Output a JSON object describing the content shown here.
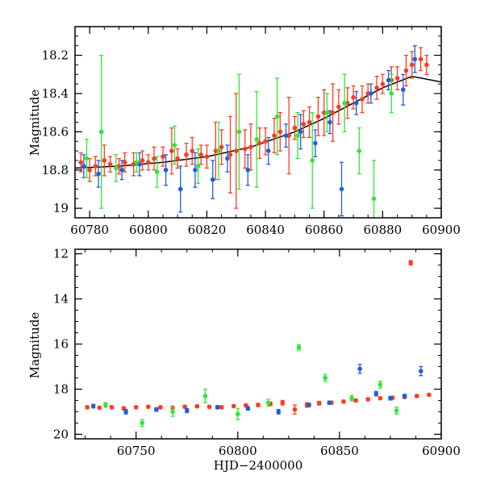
{
  "chart_data": [
    {
      "type": "scatter",
      "title": "",
      "xlabel": "",
      "ylabel": "Magnitude",
      "xlim": [
        60775,
        60900
      ],
      "ylim": [
        19.05,
        18.05
      ],
      "y_inverted": true,
      "x_ticks": [
        60780,
        60800,
        60820,
        60840,
        60860,
        60880,
        60900
      ],
      "y_ticks": [
        18.2,
        18.4,
        18.6,
        18.8,
        19
      ],
      "x_tick_labels": [
        "60780",
        "60800",
        "60820",
        "60840",
        "60860",
        "60880",
        "60900"
      ],
      "y_tick_labels": [
        "18.2",
        "18.4",
        "18.6",
        "18.8",
        "19"
      ],
      "grid": false,
      "legend": "none",
      "trend_curve": {
        "color": "#000000",
        "x": [
          60775,
          60790,
          60805,
          60820,
          60835,
          60850,
          60860,
          60870,
          60880,
          60890,
          60900
        ],
        "y": [
          18.79,
          18.78,
          18.76,
          18.73,
          18.68,
          18.6,
          18.53,
          18.45,
          18.37,
          18.31,
          18.34
        ]
      },
      "series": [
        {
          "color": "#ff3b1f",
          "x": [
            60777,
            60780,
            60782,
            60785,
            60787,
            60790,
            60792,
            60795,
            60798,
            60800,
            60802,
            60805,
            60808,
            60810,
            60813,
            60815,
            60818,
            60820,
            60823,
            60825,
            60828,
            60830,
            60833,
            60835,
            60838,
            60840,
            60843,
            60845,
            60848,
            60850,
            60853,
            60855,
            60858,
            60860,
            60863,
            60865,
            60868,
            60870,
            60873,
            60875,
            60878,
            60880,
            60883,
            60885,
            60888,
            60890,
            60893,
            60895
          ],
          "y": [
            18.76,
            18.8,
            18.78,
            18.75,
            18.77,
            18.78,
            18.76,
            18.77,
            18.75,
            18.76,
            18.74,
            18.73,
            18.7,
            18.74,
            18.72,
            18.7,
            18.72,
            18.73,
            18.7,
            18.68,
            18.72,
            18.7,
            18.69,
            18.68,
            18.66,
            18.65,
            18.62,
            18.6,
            18.62,
            18.58,
            18.56,
            18.55,
            18.52,
            18.5,
            18.5,
            18.47,
            18.45,
            18.42,
            18.43,
            18.4,
            18.37,
            18.35,
            18.33,
            18.32,
            18.28,
            18.25,
            18.22,
            18.25
          ],
          "err": [
            0.05,
            0.06,
            0.05,
            0.08,
            0.04,
            0.04,
            0.05,
            0.06,
            0.05,
            0.04,
            0.06,
            0.05,
            0.12,
            0.05,
            0.06,
            0.07,
            0.05,
            0.06,
            0.15,
            0.09,
            0.2,
            0.3,
            0.1,
            0.12,
            0.08,
            0.07,
            0.09,
            0.1,
            0.2,
            0.06,
            0.07,
            0.08,
            0.1,
            0.12,
            0.15,
            0.09,
            0.08,
            0.06,
            0.07,
            0.05,
            0.06,
            0.05,
            0.07,
            0.06,
            0.08,
            0.07,
            0.06,
            0.05
          ]
        },
        {
          "color": "#1f5fe0",
          "x": [
            60778,
            60783,
            60791,
            60797,
            60806,
            60811,
            60816,
            60822,
            60827,
            60834,
            60841,
            60847,
            60852,
            60857,
            60862,
            60866,
            60871,
            60876,
            60882,
            60887,
            60891
          ],
          "y": [
            18.78,
            18.82,
            18.8,
            18.77,
            18.8,
            18.9,
            18.8,
            18.85,
            18.74,
            18.8,
            18.7,
            18.62,
            18.6,
            18.66,
            18.55,
            18.9,
            18.45,
            18.4,
            18.33,
            18.38,
            18.22
          ],
          "err": [
            0.06,
            0.07,
            0.05,
            0.06,
            0.08,
            0.12,
            0.09,
            0.1,
            0.07,
            0.08,
            0.07,
            0.06,
            0.09,
            0.07,
            0.06,
            0.14,
            0.06,
            0.05,
            0.05,
            0.08,
            0.07
          ]
        },
        {
          "color": "#33e633",
          "x": [
            60779,
            60784,
            60789,
            60796,
            60803,
            60809,
            60817,
            60824,
            60831,
            60837,
            60844,
            60851,
            60856,
            60861,
            60867,
            60872,
            60877,
            60883
          ],
          "y": [
            18.74,
            18.6,
            18.79,
            18.76,
            18.81,
            18.67,
            18.78,
            18.7,
            18.6,
            18.64,
            18.52,
            18.62,
            18.75,
            18.5,
            18.45,
            18.7,
            18.95,
            18.4
          ],
          "err": [
            0.1,
            0.4,
            0.07,
            0.05,
            0.08,
            0.1,
            0.09,
            0.15,
            0.3,
            0.25,
            0.2,
            0.12,
            0.25,
            0.1,
            0.15,
            0.12,
            0.2,
            0.1
          ]
        }
      ]
    },
    {
      "type": "scatter",
      "title": "",
      "xlabel": "HJD−2400000",
      "ylabel": "Magnitude",
      "xlim": [
        60720,
        60900
      ],
      "ylim": [
        20.2,
        11.8
      ],
      "y_inverted": true,
      "x_ticks": [
        60750,
        60800,
        60850,
        60900
      ],
      "y_ticks": [
        12,
        14,
        16,
        18,
        20
      ],
      "x_tick_labels": [
        "60750",
        "60800",
        "60850",
        "60900"
      ],
      "y_tick_labels": [
        "12",
        "14",
        "16",
        "18",
        "20"
      ],
      "grid": false,
      "legend": "none",
      "series": [
        {
          "color": "#ff3b1f",
          "x": [
            60726,
            60732,
            60738,
            60744,
            60750,
            60756,
            60762,
            60768,
            60774,
            60780,
            60786,
            60792,
            60798,
            60804,
            60810,
            60816,
            60822,
            60828,
            60834,
            60840,
            60846,
            60852,
            60858,
            60864,
            60870,
            60876,
            60882,
            60885,
            60888,
            60894
          ],
          "y": [
            18.8,
            18.82,
            18.8,
            18.85,
            18.8,
            18.78,
            18.8,
            18.82,
            18.78,
            18.76,
            18.78,
            18.8,
            18.75,
            18.72,
            18.7,
            18.65,
            18.6,
            18.9,
            18.7,
            18.62,
            18.6,
            18.55,
            18.5,
            18.45,
            18.4,
            18.38,
            18.35,
            12.4,
            18.3,
            18.25
          ],
          "err": [
            0.06,
            0.05,
            0.06,
            0.07,
            0.05,
            0.05,
            0.06,
            0.05,
            0.06,
            0.05,
            0.05,
            0.06,
            0.05,
            0.06,
            0.07,
            0.08,
            0.1,
            0.2,
            0.1,
            0.08,
            0.07,
            0.06,
            0.06,
            0.06,
            0.05,
            0.06,
            0.05,
            0.1,
            0.06,
            0.05
          ]
        },
        {
          "color": "#1f5fe0",
          "x": [
            60729,
            60745,
            60760,
            60775,
            60790,
            60805,
            60820,
            60835,
            60845,
            60860,
            60868,
            60875,
            60882,
            60890
          ],
          "y": [
            18.75,
            19.0,
            18.9,
            18.95,
            18.8,
            18.85,
            19.0,
            18.7,
            18.6,
            17.1,
            18.2,
            18.4,
            18.3,
            17.2
          ],
          "err": [
            0.08,
            0.1,
            0.08,
            0.09,
            0.07,
            0.08,
            0.1,
            0.07,
            0.07,
            0.2,
            0.1,
            0.08,
            0.07,
            0.2
          ]
        },
        {
          "color": "#33e633",
          "x": [
            60735,
            60753,
            60768,
            60784,
            60800,
            60815,
            60830,
            60843,
            60856,
            60870,
            60878
          ],
          "y": [
            18.7,
            19.5,
            19.0,
            18.3,
            19.1,
            18.6,
            16.15,
            17.5,
            18.4,
            17.8,
            18.95
          ],
          "err": [
            0.1,
            0.15,
            0.2,
            0.3,
            0.25,
            0.15,
            0.12,
            0.15,
            0.12,
            0.15,
            0.15
          ]
        }
      ]
    }
  ]
}
